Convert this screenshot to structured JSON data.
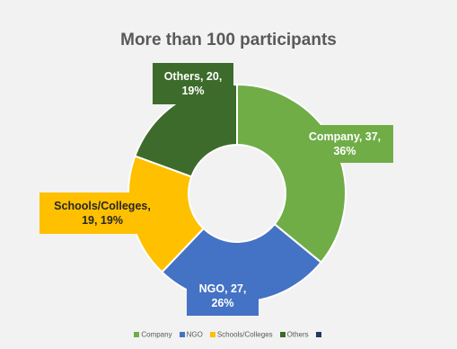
{
  "chart_data": {
    "type": "pie",
    "variant": "donut",
    "title": "More than 100 participants",
    "slices": [
      {
        "name": "Company",
        "value": 37,
        "percent": 36,
        "label": "Company, 37,\n36%",
        "color": "#70ad47",
        "label_color": "#ffffff"
      },
      {
        "name": "NGO",
        "value": 27,
        "percent": 26,
        "label": "NGO, 27,\n26%",
        "color": "#4472c4",
        "label_color": "#ffffff"
      },
      {
        "name": "Schools/Colleges",
        "value": 19,
        "percent": 19,
        "label": "Schools/Colleges,\n19, 19%",
        "color": "#ffc000",
        "label_color": "#262626"
      },
      {
        "name": "Others",
        "value": 20,
        "percent": 19,
        "label": "Others, 20,\n19%",
        "color": "#3d6b2b",
        "label_color": "#ffffff"
      }
    ],
    "legend": {
      "placement": "bottom",
      "entries": [
        "Company",
        "NGO",
        "Schools/Colleges",
        "Others"
      ],
      "extra_marker_color": "#203864"
    }
  }
}
